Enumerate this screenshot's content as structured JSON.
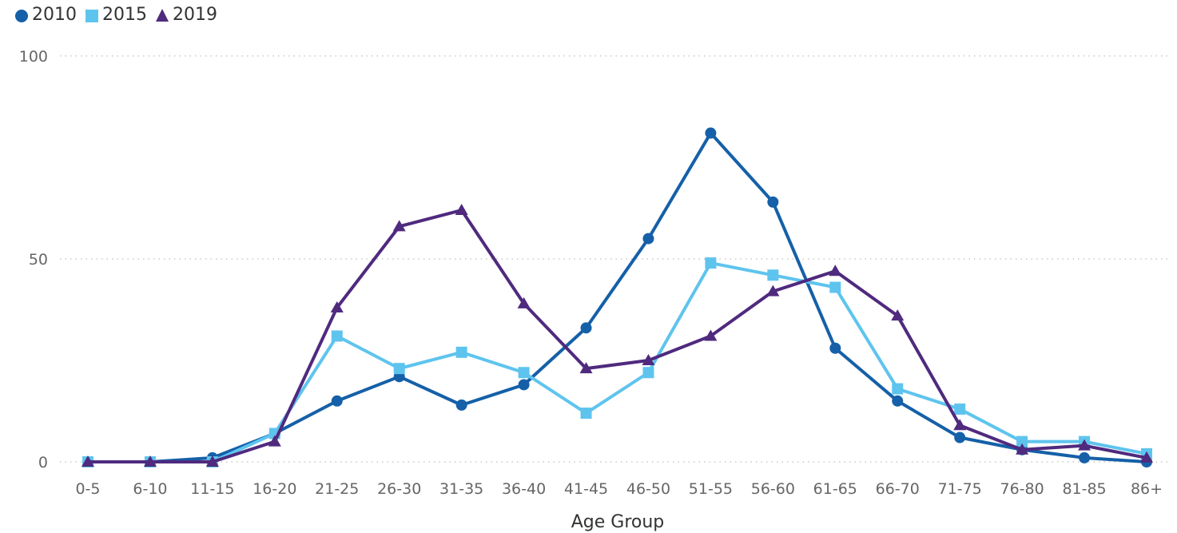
{
  "chart_data": {
    "type": "line",
    "title": "",
    "xlabel": "Age Group",
    "ylabel": "",
    "ylim": [
      0,
      100
    ],
    "yticks": [
      0,
      50,
      100
    ],
    "grid": "horizontal dotted",
    "legend_position": "top-left",
    "categories": [
      "0-5",
      "6-10",
      "11-15",
      "16-20",
      "21-25",
      "26-30",
      "31-35",
      "36-40",
      "41-45",
      "46-50",
      "51-55",
      "56-60",
      "61-65",
      "66-70",
      "71-75",
      "76-80",
      "81-85",
      "86+"
    ],
    "series": [
      {
        "name": "2010",
        "marker": "circle",
        "color": "#1560a8",
        "values": [
          0,
          0,
          1,
          7,
          15,
          21,
          14,
          19,
          33,
          55,
          81,
          64,
          28,
          15,
          6,
          3,
          1,
          0
        ]
      },
      {
        "name": "2015",
        "marker": "square",
        "color": "#5ec4ee",
        "values": [
          0,
          0,
          0,
          7,
          31,
          23,
          27,
          22,
          12,
          22,
          49,
          46,
          43,
          18,
          13,
          5,
          5,
          2
        ]
      },
      {
        "name": "2019",
        "marker": "triangle",
        "color": "#4f2a7e",
        "values": [
          0,
          0,
          0,
          5,
          38,
          58,
          62,
          39,
          23,
          25,
          31,
          42,
          47,
          36,
          9,
          3,
          4,
          1
        ]
      }
    ]
  }
}
